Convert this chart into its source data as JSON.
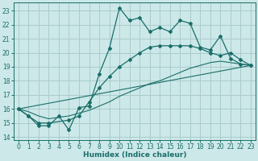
{
  "bg_color": "#cce8e8",
  "grid_color": "#aacccc",
  "line_color": "#1a6e6a",
  "xlabel": "Humidex (Indice chaleur)",
  "xlim": [
    -0.5,
    23.5
  ],
  "ylim": [
    13.8,
    23.6
  ],
  "yticks": [
    14,
    15,
    16,
    17,
    18,
    19,
    20,
    21,
    22,
    23
  ],
  "xticks": [
    0,
    1,
    2,
    3,
    4,
    5,
    6,
    7,
    8,
    9,
    10,
    11,
    12,
    13,
    14,
    15,
    16,
    17,
    18,
    19,
    20,
    21,
    22,
    23
  ],
  "line1_x": [
    0,
    1,
    2,
    3,
    4,
    5,
    6,
    7,
    8,
    9,
    10,
    11,
    12,
    13,
    14,
    15,
    16,
    17,
    18,
    19,
    20,
    21,
    22,
    23
  ],
  "line1_y": [
    16.0,
    15.5,
    14.8,
    14.8,
    15.5,
    14.5,
    16.1,
    16.2,
    18.5,
    20.3,
    23.2,
    22.3,
    22.5,
    21.5,
    21.8,
    21.5,
    22.3,
    22.1,
    20.4,
    20.2,
    21.2,
    19.6,
    19.2,
    19.1
  ],
  "line2_x": [
    0,
    1,
    2,
    3,
    5,
    6,
    7,
    8,
    9,
    10,
    11,
    12,
    13,
    14,
    15,
    16,
    17,
    18,
    19,
    20,
    21,
    22,
    23
  ],
  "line2_y": [
    16.0,
    15.5,
    15.0,
    15.0,
    15.2,
    15.5,
    16.5,
    17.5,
    18.3,
    19.0,
    19.5,
    20.0,
    20.4,
    20.5,
    20.5,
    20.5,
    20.5,
    20.3,
    20.0,
    19.8,
    20.0,
    19.5,
    19.1
  ],
  "line3_x": [
    0,
    23
  ],
  "line3_y": [
    16.0,
    19.1
  ],
  "line4_x": [
    0,
    1,
    2,
    3,
    4,
    5,
    6,
    7,
    8,
    9,
    10,
    11,
    12,
    13,
    14,
    15,
    16,
    17,
    18,
    19,
    20,
    21,
    22,
    23
  ],
  "line4_y": [
    16.0,
    15.8,
    15.5,
    15.3,
    15.4,
    15.5,
    15.7,
    15.9,
    16.2,
    16.5,
    16.9,
    17.2,
    17.5,
    17.8,
    18.0,
    18.3,
    18.6,
    18.9,
    19.1,
    19.3,
    19.4,
    19.3,
    19.2,
    19.1
  ]
}
